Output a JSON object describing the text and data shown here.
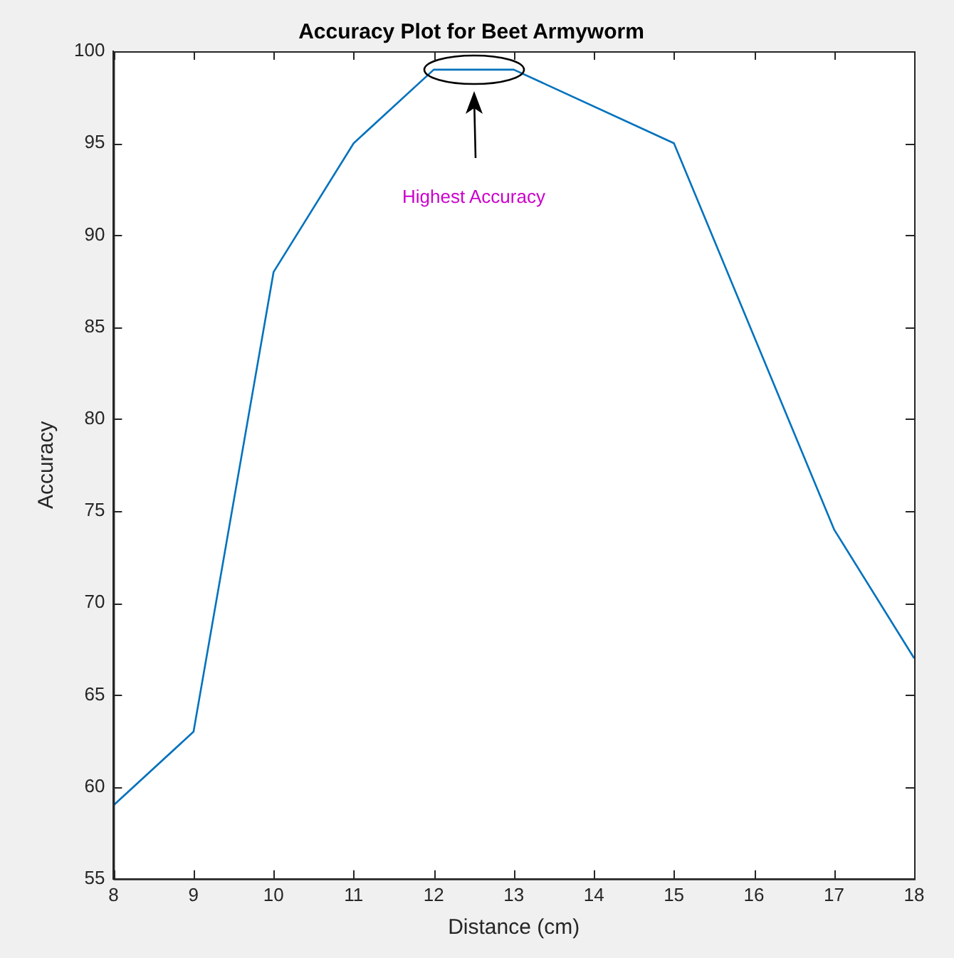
{
  "chart_data": {
    "type": "line",
    "title": "Accuracy Plot for Beet Armyworm",
    "xlabel": "Distance (cm)",
    "ylabel": "Accuracy",
    "x": [
      8,
      9,
      10,
      11,
      12,
      13,
      15,
      17,
      18
    ],
    "series": [
      {
        "color": "#0072bd",
        "values": [
          59,
          63,
          88,
          95,
          99,
          99,
          95,
          74,
          67
        ]
      }
    ],
    "xlim": [
      8,
      18
    ],
    "xticks": [
      8,
      9,
      10,
      11,
      12,
      13,
      14,
      15,
      16,
      17,
      18
    ],
    "ylim": [
      55,
      100
    ],
    "yticks": [
      55,
      60,
      65,
      70,
      75,
      80,
      85,
      90,
      95,
      100
    ],
    "grid": false,
    "legend": false,
    "marker": "none",
    "line_style": "solid",
    "annotations": [
      "Highest Accuracy"
    ]
  }
}
